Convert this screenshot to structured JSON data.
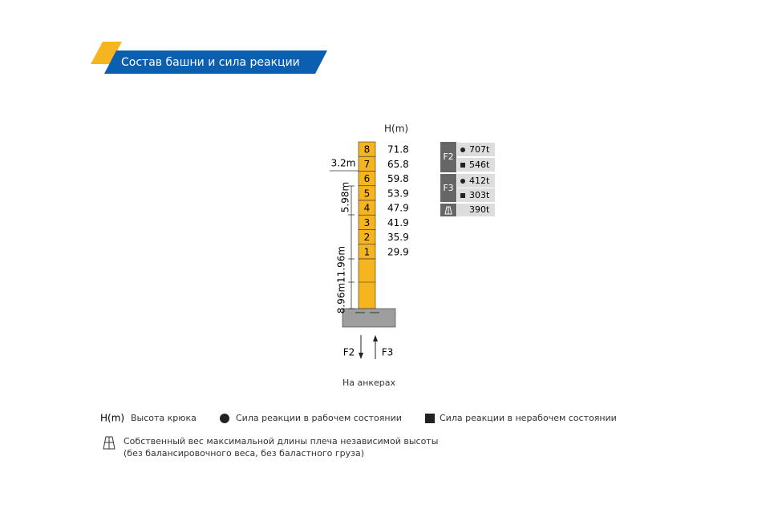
{
  "header": {
    "title": "Состав башни и сила реакции"
  },
  "tower": {
    "unit_label": "H(m)",
    "sections": [
      {
        "label": "8",
        "height": "71.8"
      },
      {
        "label": "7",
        "height": "65.8"
      },
      {
        "label": "6",
        "height": "59.8"
      },
      {
        "label": "5",
        "height": "53.9"
      },
      {
        "label": "4",
        "height": "47.9"
      },
      {
        "label": "3",
        "height": "41.9"
      },
      {
        "label": "2",
        "height": "35.9"
      },
      {
        "label": "1",
        "height": "29.9"
      }
    ],
    "dimensions": {
      "jib_width": "3.2m",
      "section": "5.98m",
      "middle": "11.96m",
      "bottom": "8.96m"
    },
    "arrows": {
      "left": "F2",
      "right": "F3"
    },
    "caption": "На анкерах"
  },
  "forces": {
    "f2": {
      "label": "F2",
      "working": "707t",
      "non_working": "546t"
    },
    "f3": {
      "label": "F3",
      "working": "412t",
      "non_working": "303t"
    },
    "weight": "390t"
  },
  "legend": {
    "hook_symbol": "H(m)",
    "hook_text": "Высота крюка",
    "working_text": "Сила реакции в рабочем состоянии",
    "non_working_text": "Сила реакции в нерабочем состоянии",
    "weight_line1": "Собственный вес максимальной длины плеча независимой высоты",
    "weight_line2": "(без балансировочного веса, без баластного груза)"
  }
}
